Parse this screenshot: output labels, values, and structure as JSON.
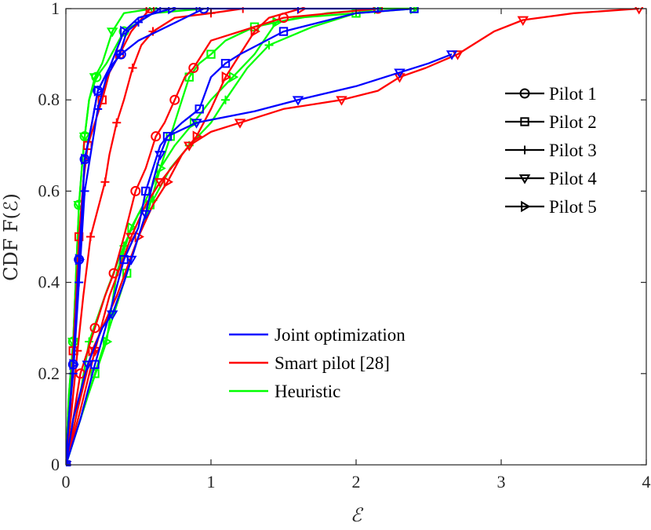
{
  "chart_data": {
    "type": "line",
    "title": "",
    "xlabel": "ℰ",
    "ylabel": "CDF F(ℰ)",
    "xlim": [
      0,
      4
    ],
    "ylim": [
      0,
      1
    ],
    "xticks": [
      0,
      1,
      2,
      3,
      4
    ],
    "yticks": [
      0,
      0.2,
      0.4,
      0.6,
      0.8,
      1
    ],
    "xtick_labels": [
      "0",
      "1",
      "2",
      "3",
      "4"
    ],
    "ytick_labels": [
      "0",
      "0.2",
      "0.4",
      "0.6",
      "0.8",
      "1"
    ],
    "method_legend": [
      {
        "label": "Joint optimization",
        "color": "#0000ff"
      },
      {
        "label": "Smart pilot [28]",
        "color": "#ff0000"
      },
      {
        "label": "Heuristic",
        "color": "#00ff00"
      }
    ],
    "pilot_legend": [
      {
        "label": "Pilot 1",
        "marker": "circle"
      },
      {
        "label": "Pilot 2",
        "marker": "square"
      },
      {
        "label": "Pilot 3",
        "marker": "plus"
      },
      {
        "label": "Pilot 4",
        "marker": "triangle-down"
      },
      {
        "label": "Pilot 5",
        "marker": "triangle-right"
      }
    ],
    "series": [
      {
        "name": "Joint optimization - Pilot 1",
        "method": "Joint optimization",
        "pilot": "Pilot 1",
        "color": "#0000ff",
        "marker": "circle",
        "x": [
          0,
          0.02,
          0.05,
          0.07,
          0.09,
          0.11,
          0.13,
          0.18,
          0.22,
          0.3,
          0.38,
          0.5,
          0.95
        ],
        "y": [
          0,
          0.1,
          0.22,
          0.33,
          0.45,
          0.55,
          0.67,
          0.75,
          0.82,
          0.87,
          0.9,
          0.93,
          1.0
        ]
      },
      {
        "name": "Joint optimization - Pilot 2",
        "method": "Joint optimization",
        "pilot": "Pilot 2",
        "color": "#0000ff",
        "marker": "square",
        "x": [
          0,
          0.1,
          0.2,
          0.3,
          0.4,
          0.5,
          0.55,
          0.65,
          0.7,
          0.8,
          0.92,
          1.0,
          1.1,
          1.2,
          1.5,
          2.0,
          2.4
        ],
        "y": [
          0,
          0.1,
          0.22,
          0.33,
          0.45,
          0.52,
          0.6,
          0.7,
          0.72,
          0.75,
          0.78,
          0.85,
          0.88,
          0.9,
          0.95,
          0.99,
          1.0
        ]
      },
      {
        "name": "Joint optimization - Pilot 3",
        "method": "Joint optimization",
        "pilot": "Pilot 3",
        "color": "#0000ff",
        "marker": "plus",
        "x": [
          0,
          0.02,
          0.05,
          0.07,
          0.09,
          0.11,
          0.13,
          0.18,
          0.22,
          0.28,
          0.37,
          0.42,
          0.5,
          0.6,
          0.65,
          0.75,
          0.9,
          1.2,
          1.6,
          2.15
        ],
        "y": [
          0,
          0.1,
          0.2,
          0.3,
          0.4,
          0.5,
          0.6,
          0.7,
          0.78,
          0.85,
          0.9,
          0.95,
          0.97,
          0.99,
          1.0,
          1.0,
          1.0,
          1.0,
          1.0,
          1.0
        ]
      },
      {
        "name": "Joint optimization - Pilot 4",
        "method": "Joint optimization",
        "pilot": "Pilot 4",
        "color": "#0000ff",
        "marker": "triangle-down",
        "x": [
          0,
          0.05,
          0.15,
          0.25,
          0.32,
          0.4,
          0.45,
          0.5,
          0.55,
          0.6,
          0.65,
          0.7,
          0.9,
          1.3,
          1.6,
          2.0,
          2.3,
          2.5,
          2.66
        ],
        "y": [
          0,
          0.1,
          0.22,
          0.3,
          0.33,
          0.4,
          0.45,
          0.5,
          0.55,
          0.62,
          0.68,
          0.72,
          0.75,
          0.775,
          0.8,
          0.83,
          0.86,
          0.88,
          0.9
        ]
      },
      {
        "name": "Joint optimization - Pilot 5",
        "method": "Joint optimization",
        "pilot": "Pilot 5",
        "color": "#0000ff",
        "marker": "triangle-right",
        "x": [
          0,
          0.02,
          0.05,
          0.07,
          0.09,
          0.11,
          0.13,
          0.18,
          0.22,
          0.3,
          0.4,
          0.5,
          0.73
        ],
        "y": [
          0,
          0.1,
          0.22,
          0.33,
          0.45,
          0.55,
          0.67,
          0.75,
          0.82,
          0.87,
          0.95,
          0.98,
          1.0
        ]
      },
      {
        "name": "Smart pilot [28] - Pilot 1",
        "method": "Smart pilot [28]",
        "pilot": "Pilot 1",
        "color": "#ff0000",
        "marker": "circle",
        "x": [
          0,
          0.05,
          0.1,
          0.15,
          0.2,
          0.27,
          0.33,
          0.4,
          0.48,
          0.55,
          0.62,
          0.68,
          0.75,
          0.82,
          0.88,
          1.0,
          1.5,
          2.15
        ],
        "y": [
          0,
          0.1,
          0.2,
          0.25,
          0.3,
          0.37,
          0.42,
          0.5,
          0.6,
          0.65,
          0.72,
          0.75,
          0.8,
          0.85,
          0.87,
          0.93,
          0.98,
          1.0
        ]
      },
      {
        "name": "Smart pilot [28] - Pilot 2",
        "method": "Smart pilot [28]",
        "pilot": "Pilot 2",
        "color": "#ff0000",
        "marker": "square",
        "x": [
          0,
          0.03,
          0.05,
          0.07,
          0.09,
          0.12,
          0.15,
          0.2,
          0.25,
          0.3,
          0.37,
          0.45,
          0.58
        ],
        "y": [
          0,
          0.12,
          0.25,
          0.37,
          0.5,
          0.62,
          0.7,
          0.75,
          0.8,
          0.86,
          0.9,
          0.95,
          1.0
        ]
      },
      {
        "name": "Smart pilot [28] - Pilot 3",
        "method": "Smart pilot [28]",
        "pilot": "Pilot 3",
        "color": "#ff0000",
        "marker": "plus",
        "x": [
          0,
          0.04,
          0.08,
          0.12,
          0.17,
          0.22,
          0.27,
          0.3,
          0.35,
          0.4,
          0.46,
          0.52,
          0.6,
          0.75,
          1.0,
          1.22
        ],
        "y": [
          0,
          0.12,
          0.25,
          0.37,
          0.5,
          0.56,
          0.62,
          0.68,
          0.75,
          0.8,
          0.87,
          0.92,
          0.95,
          0.98,
          0.99,
          1.0
        ]
      },
      {
        "name": "Smart pilot [28] - Pilot 4",
        "method": "Smart pilot [28]",
        "pilot": "Pilot 4",
        "color": "#ff0000",
        "marker": "triangle-down",
        "x": [
          0,
          0.1,
          0.2,
          0.3,
          0.45,
          0.55,
          0.65,
          0.75,
          0.85,
          1.0,
          1.2,
          1.5,
          1.9,
          2.15,
          2.3,
          2.48,
          2.7,
          2.95,
          3.15,
          3.5,
          3.95
        ],
        "y": [
          0,
          0.12,
          0.25,
          0.37,
          0.5,
          0.57,
          0.62,
          0.66,
          0.7,
          0.73,
          0.75,
          0.78,
          0.8,
          0.82,
          0.85,
          0.87,
          0.9,
          0.95,
          0.975,
          0.99,
          1.0
        ]
      },
      {
        "name": "Smart pilot [28] - Pilot 5",
        "method": "Smart pilot [28]",
        "pilot": "Pilot 5",
        "color": "#ff0000",
        "marker": "triangle-right",
        "x": [
          0,
          0.08,
          0.18,
          0.35,
          0.5,
          0.6,
          0.7,
          0.8,
          0.9,
          1.0,
          1.1,
          1.2,
          1.3,
          1.4,
          1.62
        ],
        "y": [
          0,
          0.12,
          0.25,
          0.37,
          0.5,
          0.57,
          0.62,
          0.68,
          0.72,
          0.78,
          0.85,
          0.9,
          0.95,
          0.98,
          1.0
        ]
      },
      {
        "name": "Heuristic - Pilot 1",
        "method": "Heuristic",
        "pilot": "Pilot 1",
        "color": "#00ff00",
        "marker": "circle",
        "x": [
          0,
          0.02,
          0.05,
          0.07,
          0.09,
          0.11,
          0.13,
          0.16,
          0.21,
          0.28,
          0.4,
          0.6,
          0.95
        ],
        "y": [
          0,
          0.15,
          0.27,
          0.42,
          0.57,
          0.65,
          0.72,
          0.8,
          0.85,
          0.88,
          0.95,
          0.99,
          1.0
        ]
      },
      {
        "name": "Heuristic - Pilot 2",
        "method": "Heuristic",
        "pilot": "Pilot 2",
        "color": "#00ff00",
        "marker": "square",
        "x": [
          0,
          0.1,
          0.2,
          0.3,
          0.42,
          0.5,
          0.58,
          0.65,
          0.72,
          0.78,
          0.85,
          0.92,
          1.0,
          1.1,
          1.3,
          1.6,
          2.0,
          2.4
        ],
        "y": [
          0,
          0.1,
          0.2,
          0.3,
          0.42,
          0.5,
          0.57,
          0.65,
          0.72,
          0.78,
          0.85,
          0.88,
          0.9,
          0.93,
          0.96,
          0.98,
          0.99,
          1.0
        ]
      },
      {
        "name": "Heuristic - Pilot 3",
        "method": "Heuristic",
        "pilot": "Pilot 3",
        "color": "#00ff00",
        "marker": "plus",
        "x": [
          0,
          0.08,
          0.16,
          0.28,
          0.4,
          0.5,
          0.6,
          0.72,
          0.85,
          1.0,
          1.1,
          1.25,
          1.4,
          1.7,
          2.0,
          2.15,
          2.4
        ],
        "y": [
          0,
          0.12,
          0.27,
          0.38,
          0.48,
          0.55,
          0.58,
          0.65,
          0.7,
          0.75,
          0.8,
          0.87,
          0.92,
          0.96,
          0.99,
          1.0,
          1.0
        ]
      },
      {
        "name": "Heuristic - Pilot 4",
        "method": "Heuristic",
        "pilot": "Pilot 4",
        "color": "#00ff00",
        "marker": "triangle-down",
        "x": [
          0,
          0.02,
          0.05,
          0.07,
          0.09,
          0.11,
          0.13,
          0.16,
          0.2,
          0.25,
          0.32,
          0.4,
          0.6
        ],
        "y": [
          0,
          0.15,
          0.27,
          0.42,
          0.57,
          0.65,
          0.72,
          0.8,
          0.85,
          0.88,
          0.95,
          0.99,
          1.0
        ]
      },
      {
        "name": "Heuristic - Pilot 5",
        "method": "Heuristic",
        "pilot": "Pilot 5",
        "color": "#00ff00",
        "marker": "triangle-right",
        "x": [
          0,
          0.15,
          0.28,
          0.35,
          0.45,
          0.55,
          0.65,
          0.75,
          0.88,
          1.0,
          1.15,
          1.3,
          1.45,
          1.8,
          2.15,
          2.4
        ],
        "y": [
          0,
          0.15,
          0.27,
          0.42,
          0.52,
          0.58,
          0.65,
          0.7,
          0.75,
          0.8,
          0.85,
          0.9,
          0.97,
          0.99,
          1.0,
          1.0
        ]
      }
    ]
  }
}
